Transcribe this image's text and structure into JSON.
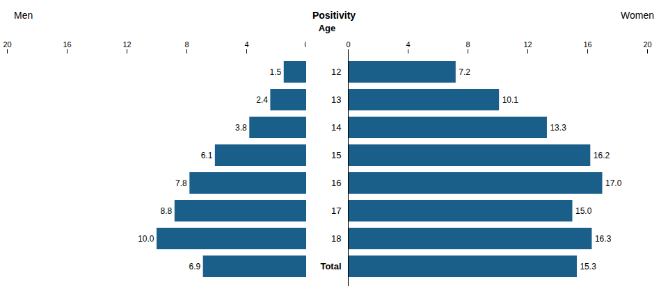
{
  "chart_data": {
    "type": "bar",
    "orientation": "horizontal",
    "title": "Positivity",
    "y_label": "Age",
    "categories": [
      "12",
      "13",
      "14",
      "15",
      "16",
      "17",
      "18",
      "Total"
    ],
    "series": [
      {
        "name": "Men",
        "color": "#1a5e8a",
        "xlim": [
          20,
          0
        ],
        "values": [
          1.5,
          2.4,
          3.8,
          6.1,
          7.8,
          8.8,
          10.0,
          6.9
        ],
        "value_labels": [
          "1.5",
          "2.4",
          "3.8",
          "6.1",
          "7.8",
          "8.8",
          "10.0",
          "6.9"
        ]
      },
      {
        "name": "Women",
        "color": "#1a5e8a",
        "xlim": [
          0,
          20
        ],
        "values": [
          7.2,
          10.1,
          13.3,
          16.2,
          17.0,
          15.0,
          16.3,
          15.3
        ],
        "value_labels": [
          "7.2",
          "10.1",
          "13.3",
          "16.2",
          "17.0",
          "15.0",
          "16.3",
          "15.3"
        ]
      }
    ],
    "xticks": [
      0,
      4,
      8,
      12,
      16,
      20
    ],
    "data_labels": true,
    "grid": false
  }
}
